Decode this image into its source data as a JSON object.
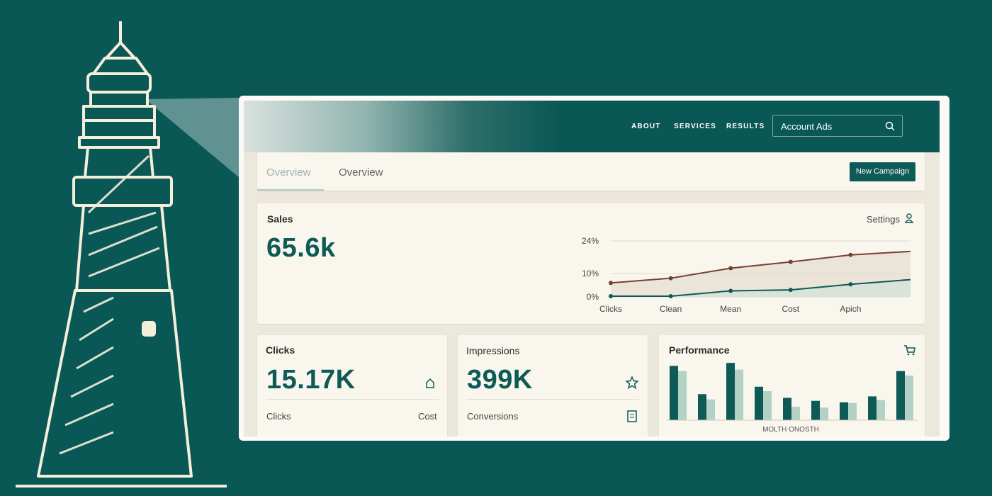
{
  "nav": {
    "links": [
      "ABOUT",
      "SERVICES",
      "RESULTS"
    ],
    "search": "Account Ads"
  },
  "tabs": [
    "Overview",
    "Overview"
  ],
  "button": "New Campaign",
  "sales": {
    "title": "Sales",
    "value": "65.6k",
    "settings": "Settings"
  },
  "cards": [
    {
      "title": "Clicks",
      "value": "15.17K",
      "left": "Clicks",
      "right": "Cost"
    },
    {
      "title": "Impressions",
      "value": "399K",
      "left": "Conversions"
    },
    {
      "title": "Performance"
    }
  ],
  "chart_data": [
    {
      "type": "line",
      "categories": [
        "Clicks",
        "Clean",
        "Mean",
        "Cost",
        "Apich",
        null
      ],
      "series": [
        {
          "color": "#7a3f34",
          "fill": "#e6ddd0",
          "values": [
            6,
            8,
            12.3,
            15,
            18,
            19.5
          ]
        },
        {
          "color": "#0e5a56",
          "fill": "#d3e3da",
          "values": [
            0.3,
            0.3,
            2.6,
            3,
            5.4,
            7.4
          ]
        }
      ],
      "ylim": [
        0,
        24
      ],
      "yticks": [
        {
          "value": 0,
          "label": "0%"
        },
        {
          "value": 10,
          "label": "10%"
        },
        {
          "value": 24,
          "label": "24%"
        }
      ],
      "grid": true
    },
    {
      "type": "bar",
      "xlabel": "MOLTH ONOSTH",
      "series": [
        {
          "color": "#0e5a56",
          "values": [
            73,
            35,
            77,
            45,
            30,
            26,
            24,
            32,
            66
          ]
        },
        {
          "color": "#b3d1c4",
          "values": [
            66,
            28,
            68,
            39,
            18,
            17,
            23,
            27,
            60
          ]
        }
      ],
      "ylim": [
        0,
        80
      ]
    }
  ]
}
